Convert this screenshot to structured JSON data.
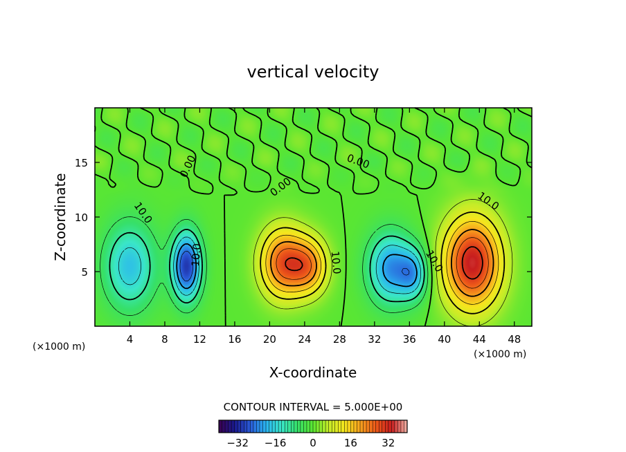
{
  "chart_data": {
    "type": "heatmap",
    "title": "vertical velocity",
    "xlabel": "X-coordinate",
    "ylabel": "Z-coordinate",
    "x_unit": "(×1000 m)",
    "x_unit_right": "(×1000 m)",
    "xlim": [
      0,
      50
    ],
    "ylim": [
      0,
      20
    ],
    "x_ticks": [
      4,
      8,
      12,
      16,
      20,
      24,
      28,
      32,
      36,
      40,
      44,
      48
    ],
    "y_ticks": [
      5,
      10,
      15
    ],
    "contour_interval_text": "CONTOUR INTERVAL = 5.000E+00",
    "contour_interval": 5,
    "colorbar": {
      "range": [
        -40,
        40
      ],
      "ticks": [
        -32,
        -16,
        0,
        16,
        32
      ],
      "colors": [
        "#3a0050",
        "#1a1a8c",
        "#2a5ad8",
        "#2ab4f0",
        "#3ae6c8",
        "#36e06a",
        "#5ae632",
        "#c6ec28",
        "#f6e61e",
        "#f6a21e",
        "#ee5a1a",
        "#c81e1e",
        "#f0b4a8"
      ]
    },
    "contour_labels": [
      {
        "text": "0.00",
        "x": 21.5,
        "z": 12.5,
        "angle": -38
      },
      {
        "text": "0.00",
        "x": 11,
        "z": 14.5,
        "angle": -65
      },
      {
        "text": "0.00",
        "x": 30,
        "z": 14.8,
        "angle": 20
      },
      {
        "text": "10.0",
        "x": 5.2,
        "z": 10.2,
        "angle": 55
      },
      {
        "text": "10.0",
        "x": 12,
        "z": 6.5,
        "angle": -85
      },
      {
        "text": "10.0",
        "x": 27.2,
        "z": 5.8,
        "angle": 85
      },
      {
        "text": "10.0",
        "x": 38.5,
        "z": 5.8,
        "angle": 60
      },
      {
        "text": "10.0",
        "x": 44.8,
        "z": 11.2,
        "angle": 35
      }
    ],
    "extrema": [
      {
        "x": 4.0,
        "z": 5.5,
        "sx": 3.0,
        "sz": 4.0,
        "value": -18
      },
      {
        "x": 10.5,
        "z": 5.5,
        "sx": 1.7,
        "sz": 3.2,
        "value": -30
      },
      {
        "x": 21.5,
        "z": 5.8,
        "sx": 2.6,
        "sz": 3.2,
        "value": 26
      },
      {
        "x": 24.5,
        "z": 5.5,
        "sx": 2.2,
        "sz": 2.6,
        "value": 20
      },
      {
        "x": 33.8,
        "z": 5.3,
        "sx": 2.6,
        "sz": 3.3,
        "value": -22
      },
      {
        "x": 36.5,
        "z": 4.8,
        "sx": 1.7,
        "sz": 2.4,
        "value": -16
      },
      {
        "x": 43.2,
        "z": 5.8,
        "sx": 3.3,
        "sz": 4.2,
        "value": 34
      }
    ]
  }
}
